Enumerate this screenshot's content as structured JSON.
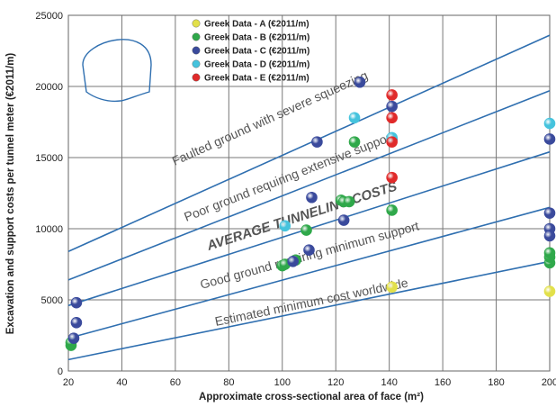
{
  "chart_data": {
    "type": "scatter",
    "xlabel": "Approximate cross-sectional area of face (m²)",
    "ylabel": "Excavation and support costs per tunnel meter (€2011/m)",
    "xlim": [
      20,
      200
    ],
    "ylim": [
      0,
      25000
    ],
    "xticks": [
      20,
      40,
      60,
      80,
      100,
      120,
      140,
      160,
      180,
      200
    ],
    "yticks": [
      0,
      5000,
      10000,
      15000,
      20000,
      25000
    ],
    "grid": true,
    "legend_position": "top-right",
    "series": [
      {
        "name": "Greek Data - A (€2011/m)",
        "color": "#e2e04a",
        "points": [
          [
            141,
            5900
          ],
          [
            200,
            5600
          ]
        ]
      },
      {
        "name": "Greek Data - B (€2011/m)",
        "color": "#2fa84a",
        "points": [
          [
            21,
            1800
          ],
          [
            21,
            2000
          ],
          [
            100,
            7400
          ],
          [
            101,
            7500
          ],
          [
            105,
            7800
          ],
          [
            109,
            9900
          ],
          [
            122,
            12000
          ],
          [
            123,
            11900
          ],
          [
            125,
            11900
          ],
          [
            127,
            16100
          ],
          [
            141,
            11300
          ],
          [
            200,
            7600
          ],
          [
            200,
            8000
          ],
          [
            200,
            8300
          ]
        ]
      },
      {
        "name": "Greek Data - C (€2011/m)",
        "color": "#3a4a9c",
        "points": [
          [
            22,
            2300
          ],
          [
            23,
            3400
          ],
          [
            23,
            4800
          ],
          [
            104,
            7700
          ],
          [
            110,
            8500
          ],
          [
            111,
            12200
          ],
          [
            113,
            16100
          ],
          [
            123,
            10600
          ],
          [
            129,
            20300
          ],
          [
            141,
            18600
          ],
          [
            141,
            16300
          ],
          [
            200,
            16300
          ],
          [
            200,
            11100
          ],
          [
            200,
            10000
          ],
          [
            200,
            9500
          ]
        ]
      },
      {
        "name": "Greek Data - D (€2011/m)",
        "color": "#45c3dd",
        "points": [
          [
            101,
            10200
          ],
          [
            127,
            17800
          ],
          [
            141,
            16400
          ],
          [
            200,
            17400
          ]
        ]
      },
      {
        "name": "Greek Data - E (€2011/m)",
        "color": "#e02a2a",
        "points": [
          [
            141,
            19400
          ],
          [
            141,
            17800
          ],
          [
            141,
            16100
          ],
          [
            141,
            13600
          ]
        ]
      }
    ],
    "trend_lines": [
      {
        "label": "Faulted ground with severe squeezing",
        "from": [
          20,
          8400
        ],
        "to": [
          200,
          23600
        ]
      },
      {
        "label": "Poor ground requiring extensive support",
        "from": [
          20,
          6400
        ],
        "to": [
          200,
          19700
        ]
      },
      {
        "label": "AVERAGE TUNNELING COSTS",
        "from": [
          20,
          4600
        ],
        "to": [
          200,
          15400
        ]
      },
      {
        "label": "Good ground requiring minimum support",
        "from": [
          20,
          2300
        ],
        "to": [
          200,
          11500
        ]
      },
      {
        "label": "Estimated minimum cost worldwide",
        "from": [
          20,
          800
        ],
        "to": [
          200,
          7700
        ]
      }
    ],
    "line_color": "#2f6fb0",
    "inset_icon": "tunnel-cross-section-icon"
  }
}
